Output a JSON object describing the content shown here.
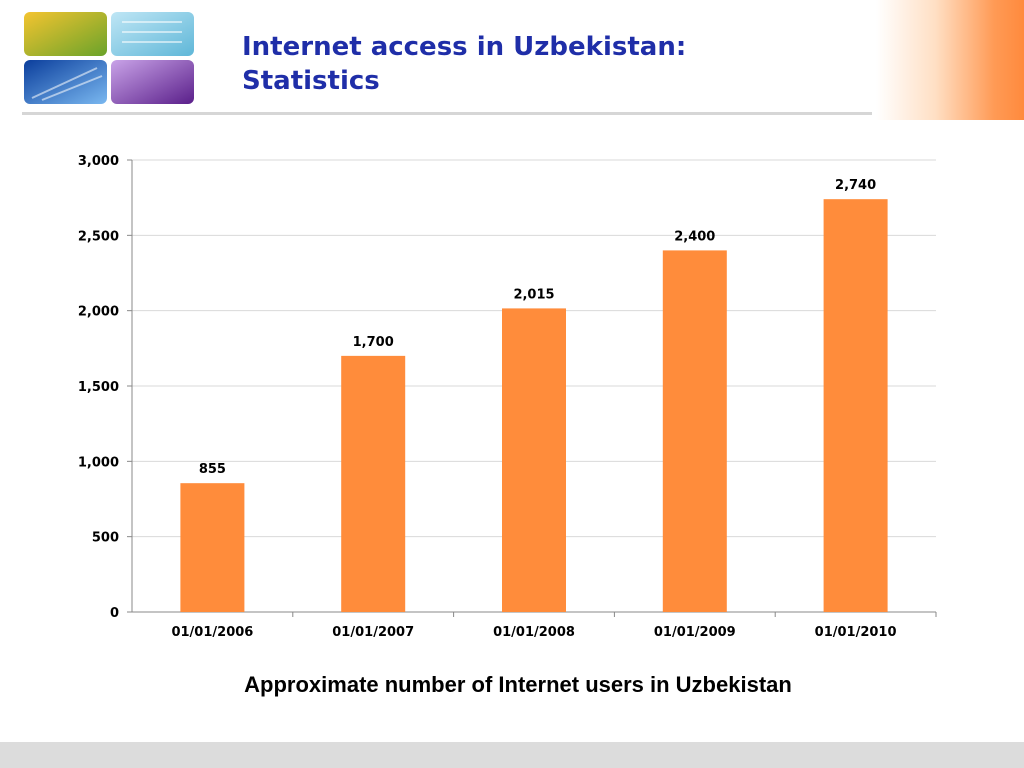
{
  "slide": {
    "title_line1": "Internet access in Uzbekistan:",
    "title_line2": "Statistics",
    "caption": "Approximate number of Internet users in Uzbekistan",
    "accent_color": "#ff8a3d",
    "title_color": "#1f2ea8"
  },
  "chart_data": {
    "type": "bar",
    "categories": [
      "01/01/2006",
      "01/01/2007",
      "01/01/2008",
      "01/01/2009",
      "01/01/2010"
    ],
    "values": [
      855,
      1700,
      2015,
      2400,
      2740
    ],
    "value_labels": [
      "855",
      "1,700",
      "2,015",
      "2,400",
      "2,740"
    ],
    "ylim": [
      0,
      3000
    ],
    "yticks": [
      0,
      500,
      1000,
      1500,
      2000,
      2500,
      3000
    ],
    "ytick_labels": [
      "0",
      "500",
      "1,000",
      "1,500",
      "2,000",
      "2,500",
      "3,000"
    ],
    "bar_color": "#ff8c3b",
    "grid": true,
    "legend": false
  }
}
